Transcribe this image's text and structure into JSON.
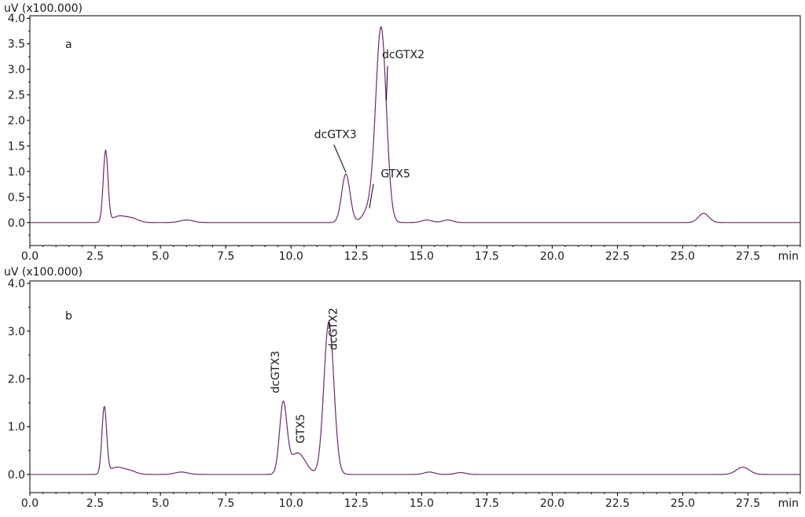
{
  "chart_data": [
    {
      "type": "line",
      "panel_label": "a",
      "ylabel": "uV (x100.000)",
      "xlabel": "min",
      "xlim": [
        0,
        29.5
      ],
      "ylim": [
        -0.45,
        4.05
      ],
      "x_ticks": [
        "0.0",
        "2.5",
        "5.0",
        "7.5",
        "10.0",
        "12.5",
        "15.0",
        "17.5",
        "20.0",
        "22.5",
        "25.0",
        "27.5"
      ],
      "y_ticks": [
        "0.0",
        "0.5",
        "1.0",
        "1.5",
        "2.0",
        "2.5",
        "3.0",
        "3.5",
        "4.0"
      ],
      "line_color": "#6b2a6b",
      "series": [
        {
          "peaks": [
            {
              "rt": 2.9,
              "height": 1.4,
              "width": 0.09
            },
            {
              "rt": 3.4,
              "height": 0.12,
              "width": 0.25
            },
            {
              "rt": 3.9,
              "height": 0.08,
              "width": 0.25
            },
            {
              "rt": 6.0,
              "height": 0.05,
              "width": 0.25
            },
            {
              "rt": 12.1,
              "height": 0.95,
              "width": 0.16
            },
            {
              "rt": 13.45,
              "height": 3.75,
              "width": 0.2
            },
            {
              "rt": 13.05,
              "height": 0.3,
              "width": 0.25
            },
            {
              "rt": 15.2,
              "height": 0.05,
              "width": 0.2
            },
            {
              "rt": 16.0,
              "height": 0.05,
              "width": 0.2
            },
            {
              "rt": 25.8,
              "height": 0.18,
              "width": 0.2
            }
          ]
        }
      ],
      "annotations": [
        {
          "text": "dcGTX2",
          "x": 14.3,
          "y": 3.22,
          "peak_x": 13.65,
          "peak_y": 2.4
        },
        {
          "text": "dcGTX3",
          "x": 11.7,
          "y": 1.65,
          "peak_x": 12.1,
          "peak_y": 0.98
        },
        {
          "text": "GTX5",
          "x": 14.0,
          "y": 0.88,
          "peak_x": 13.0,
          "peak_y": 0.28
        }
      ]
    },
    {
      "type": "line",
      "panel_label": "b",
      "ylabel": "uV (x100.000)",
      "xlabel": "min",
      "xlim": [
        0,
        29.5
      ],
      "ylim": [
        -0.38,
        4.05
      ],
      "x_ticks": [
        "0.0",
        "2.5",
        "5.0",
        "7.5",
        "10.0",
        "12.5",
        "15.0",
        "17.5",
        "20.0",
        "22.5",
        "25.0",
        "27.5"
      ],
      "y_ticks": [
        "0.0",
        "1.0",
        "2.0",
        "3.0",
        "4.0"
      ],
      "line_color": "#6b2a6b",
      "series": [
        {
          "peaks": [
            {
              "rt": 2.85,
              "height": 1.4,
              "width": 0.09
            },
            {
              "rt": 3.3,
              "height": 0.14,
              "width": 0.25
            },
            {
              "rt": 3.8,
              "height": 0.08,
              "width": 0.25
            },
            {
              "rt": 5.8,
              "height": 0.05,
              "width": 0.25
            },
            {
              "rt": 9.7,
              "height": 1.45,
              "width": 0.14
            },
            {
              "rt": 10.25,
              "height": 0.45,
              "width": 0.3
            },
            {
              "rt": 11.45,
              "height": 3.2,
              "width": 0.19
            },
            {
              "rt": 15.3,
              "height": 0.05,
              "width": 0.2
            },
            {
              "rt": 16.5,
              "height": 0.04,
              "width": 0.2
            },
            {
              "rt": 27.3,
              "height": 0.15,
              "width": 0.25
            }
          ]
        }
      ],
      "annotations": [
        {
          "text": "dcGTX3",
          "x": 9.55,
          "y": 1.7,
          "rotate": -90
        },
        {
          "text": "GTX5",
          "x": 10.5,
          "y": 0.65,
          "rotate": -90
        },
        {
          "text": "dcGTX2",
          "x": 11.75,
          "y": 2.6,
          "rotate": -90
        }
      ]
    }
  ]
}
